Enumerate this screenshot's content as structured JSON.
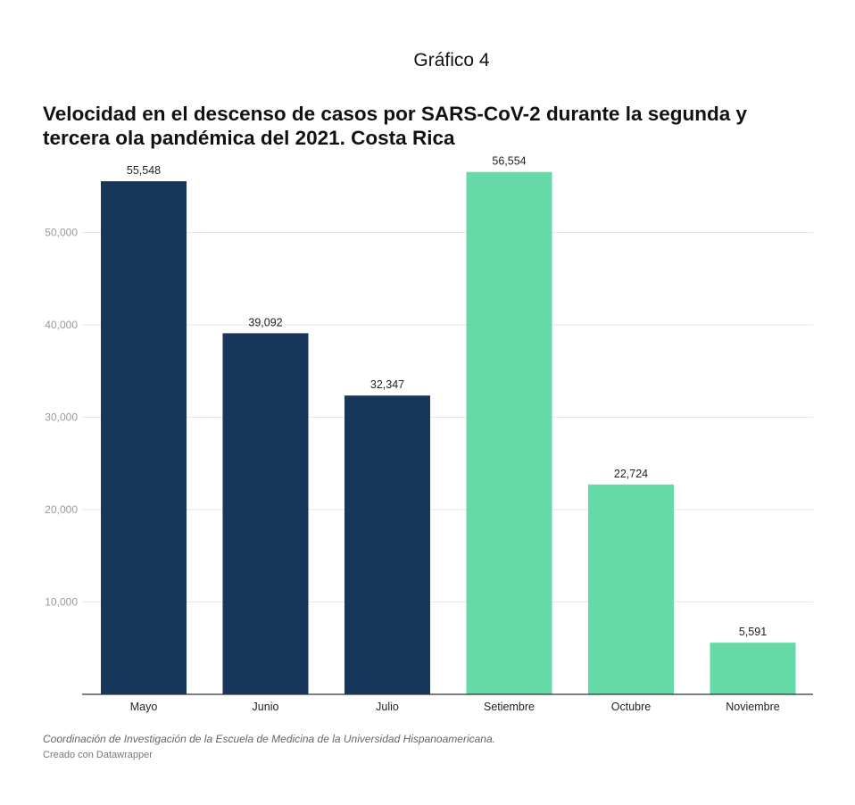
{
  "heading": "Gráfico 4",
  "notes": "Coordinación de Investigación de la Escuela de Medicina de la Universidad Hispanoamericana.",
  "credit": "Creado con Datawrapper",
  "chart_data": {
    "type": "bar",
    "title": "Velocidad en el descenso de casos por SARS-CoV-2 durante la segunda y tercera ola pandémica del 2021. Costa Rica",
    "xlabel": "",
    "ylabel": "",
    "categories": [
      "Mayo",
      "Junio",
      "Julio",
      "Setiembre",
      "Octubre",
      "Noviembre"
    ],
    "values": [
      55548,
      39092,
      32347,
      56554,
      22724,
      5591
    ],
    "value_labels": [
      "55,548",
      "39,092",
      "32,347",
      "56,554",
      "22,724",
      "5,591"
    ],
    "bar_colors": [
      "#17375a",
      "#17375a",
      "#17375a",
      "#66d9a8",
      "#66d9a8",
      "#66d9a8"
    ],
    "yticks": [
      10000,
      20000,
      30000,
      40000,
      50000
    ],
    "ytick_labels": [
      "10,000",
      "20,000",
      "30,000",
      "40,000",
      "50,000"
    ],
    "ylim": [
      0,
      56554
    ],
    "grid": true,
    "colors": {
      "gridline": "#e6e6e6",
      "axis": "#333333"
    }
  }
}
